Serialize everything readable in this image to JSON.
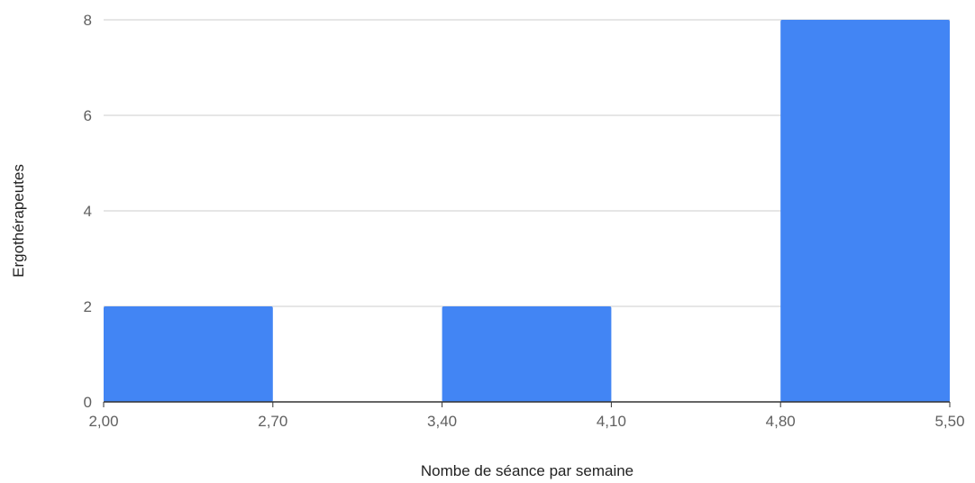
{
  "chart_data": {
    "type": "bar",
    "subtype": "histogram",
    "xlabel": "Nombe de séance par semaine",
    "ylabel": "Ergothérapeutes",
    "x_ticks": [
      "2,00",
      "2,70",
      "3,40",
      "4,10",
      "4,80",
      "5,50"
    ],
    "x_tick_values": [
      2.0,
      2.7,
      3.4,
      4.1,
      4.8,
      5.5
    ],
    "y_ticks": [
      "0",
      "2",
      "4",
      "6",
      "8"
    ],
    "y_tick_values": [
      0,
      2,
      4,
      6,
      8
    ],
    "xlim": [
      2.0,
      5.5
    ],
    "ylim": [
      0,
      8
    ],
    "bins": [
      {
        "x0": 2.0,
        "x1": 2.7,
        "value": 2
      },
      {
        "x0": 2.7,
        "x1": 3.4,
        "value": 0
      },
      {
        "x0": 3.4,
        "x1": 4.1,
        "value": 2
      },
      {
        "x0": 4.1,
        "x1": 4.8,
        "value": 0
      },
      {
        "x0": 4.8,
        "x1": 5.5,
        "value": 8
      }
    ],
    "grid": true,
    "legend": "none",
    "bar_color": "#4285f4",
    "grid_color": "#cccccc",
    "axis_color": "#333333"
  }
}
